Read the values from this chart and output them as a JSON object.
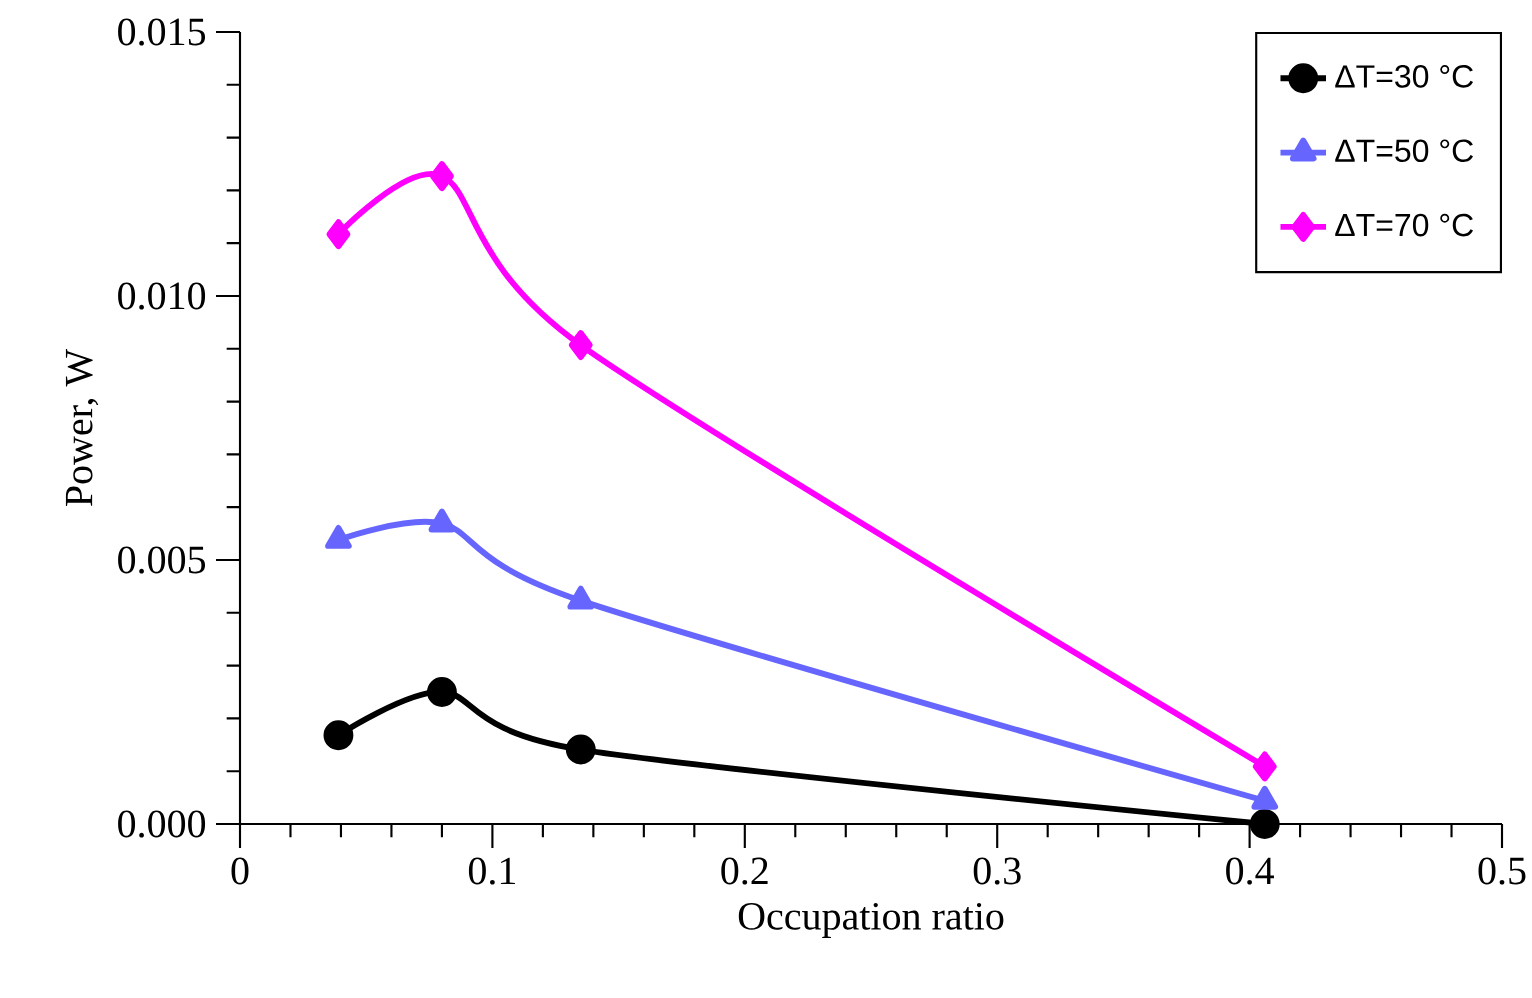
{
  "chart_data": {
    "type": "line",
    "xlabel": "Occupation ratio",
    "ylabel": "Power, W",
    "x": [
      0.039,
      0.08,
      0.135,
      0.406
    ],
    "series": [
      {
        "name": "ΔT=30 °C",
        "color": "#000000",
        "marker": "circle",
        "values": [
          0.00168,
          0.0025,
          0.00141,
          0.0
        ]
      },
      {
        "name": "ΔT=50 °C",
        "color": "#6666ff",
        "marker": "triangle",
        "values": [
          0.00538,
          0.00569,
          0.00423,
          0.00044
        ]
      },
      {
        "name": "ΔT=70 °C",
        "color": "#ff00ff",
        "marker": "diamond",
        "values": [
          0.01117,
          0.01227,
          0.00907,
          0.00109
        ]
      }
    ],
    "xlim": [
      0,
      0.5
    ],
    "xticks": [
      0,
      0.1,
      0.2,
      0.3,
      0.4,
      0.5
    ],
    "ylim": [
      0,
      0.015
    ],
    "yticks": [
      {
        "value": 0,
        "label": "0.000"
      },
      {
        "value": 0.005,
        "label": "0.005"
      },
      {
        "value": 0.01,
        "label": "0.010"
      },
      {
        "value": 0.015,
        "label": "0.015"
      }
    ],
    "grid": false,
    "legend": "top right",
    "line_style": "solid"
  }
}
